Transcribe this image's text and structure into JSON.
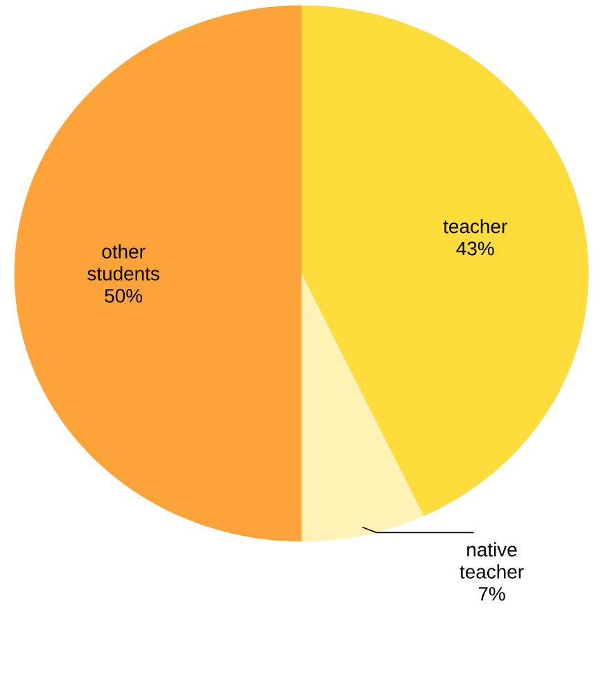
{
  "chart_data": {
    "type": "pie",
    "categories": [
      "teacher",
      "native teacher",
      "other students"
    ],
    "values": [
      43,
      7,
      50
    ],
    "value_labels": [
      "43%",
      "7%",
      "50%"
    ],
    "colors": [
      "#fddc3c",
      "#fef3b5",
      "#fda33a"
    ]
  }
}
